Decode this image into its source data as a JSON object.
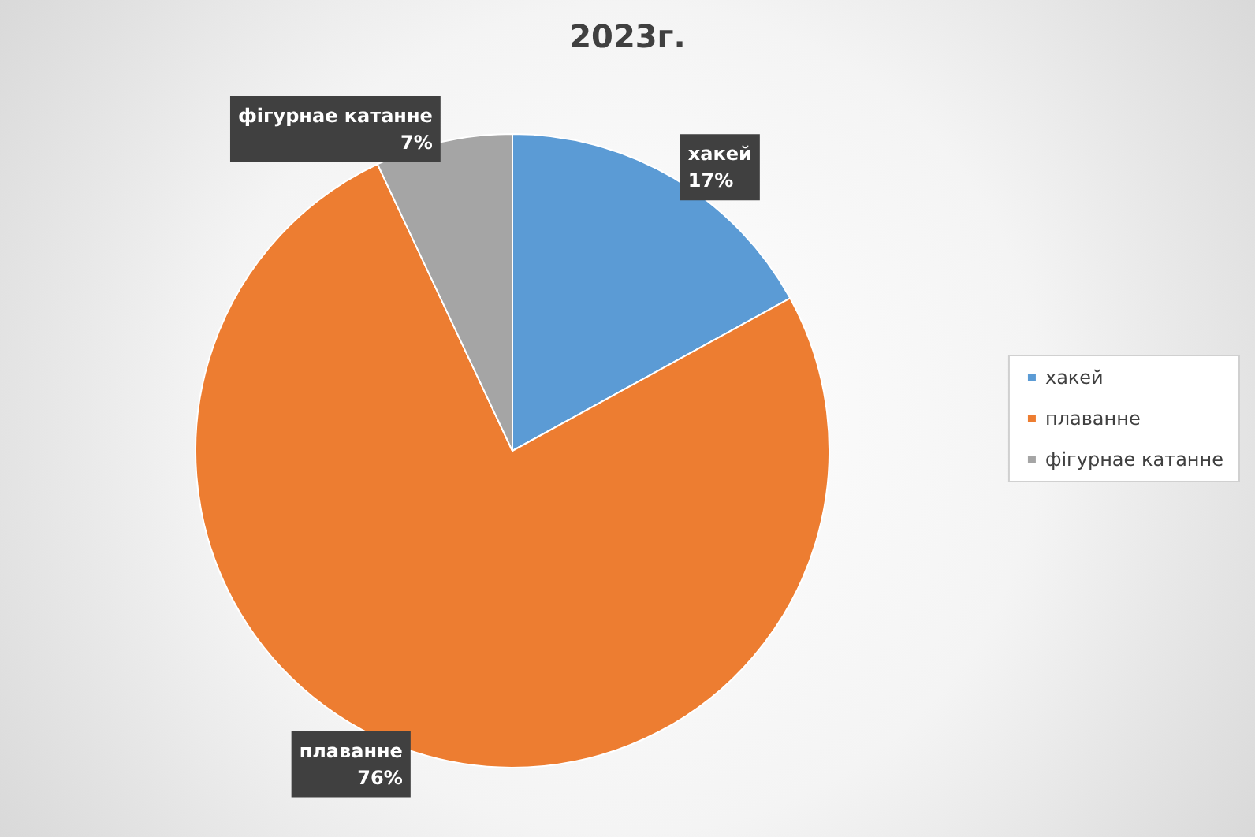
{
  "chart_data": {
    "type": "pie",
    "title": "2023г.",
    "categories": [
      "хакей",
      "плаванне",
      "фігурнае катанне"
    ],
    "values": [
      17,
      76,
      7
    ],
    "value_labels": [
      "17%",
      "76%",
      "7%"
    ],
    "colors": [
      "#5b9bd5",
      "#ed7d31",
      "#a5a5a5"
    ],
    "legend": "right"
  }
}
